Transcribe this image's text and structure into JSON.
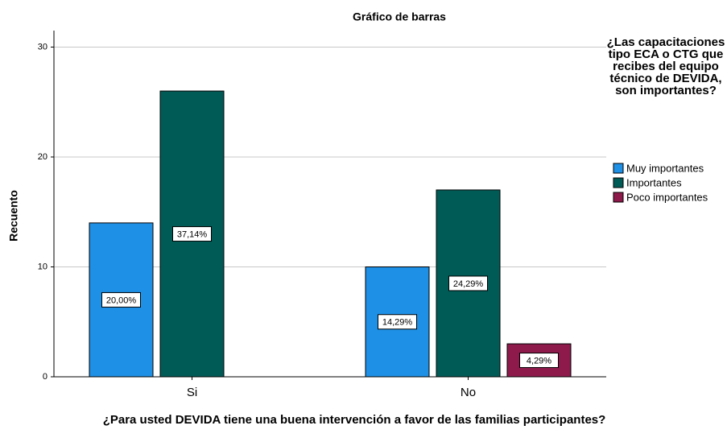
{
  "chart_data": {
    "type": "bar",
    "title": "Gráfico de barras",
    "x_label": "¿Para usted DEVIDA tiene una buena intervención a favor de las familias participantes?",
    "y_label": "Recuento",
    "legend_title": "¿Las capacitaciones tipo ECA o CTG que recibes del equipo técnico de DEVIDA, son importantes?",
    "categories": [
      "Si",
      "No"
    ],
    "series": [
      {
        "name": "Muy importantes",
        "color": "#1e90e6",
        "values": [
          14,
          10
        ],
        "percent_labels": [
          "20,00%",
          "14,29%"
        ]
      },
      {
        "name": "Importantes",
        "color": "#005b57",
        "values": [
          26,
          17
        ],
        "percent_labels": [
          "37,14%",
          "24,29%"
        ]
      },
      {
        "name": "Poco importantes",
        "color": "#8e1a4c",
        "values": [
          null,
          3
        ],
        "percent_labels": [
          null,
          "4,29%"
        ]
      }
    ],
    "ylim": [
      0,
      31.5
    ],
    "yticks": [
      0,
      10,
      20,
      30
    ],
    "grid": true,
    "legend": "right"
  }
}
